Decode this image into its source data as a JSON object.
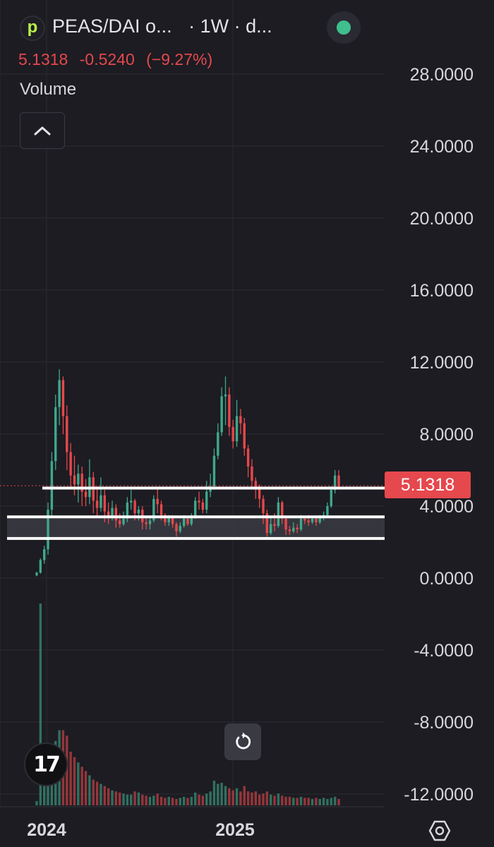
{
  "header": {
    "logo_letter": "p",
    "symbol": "PEAS/DAI o...",
    "interval": "· 1W · d...",
    "price": "5.1318",
    "change": "-0.5240",
    "change_pct": "(−9.27%)",
    "volume_label": "Volume",
    "status_color": "#3fbf8e"
  },
  "icons": {
    "collapse": "chevron-up-icon",
    "reset": "reset-icon",
    "logo": "tradingview-logo",
    "settings": "settings-icon"
  },
  "tv_logo_text": "17",
  "price_badge": "5.1318",
  "colors": {
    "up": "#3fa88b",
    "down": "#e5484d",
    "background": "#1c1c22",
    "grid": "#2a2a31"
  },
  "chart_data": {
    "type": "candlestick",
    "y_ticks": [
      "28.0000",
      "24.0000",
      "20.0000",
      "16.0000",
      "12.0000",
      "8.0000",
      "4.0000",
      "0.0000",
      "-4.0000",
      "-8.0000",
      "-12.0000"
    ],
    "y_tick_values": [
      28,
      24,
      20,
      16,
      12,
      8,
      4,
      0,
      -4,
      -8,
      -12
    ],
    "ylim": [
      -12.7,
      30
    ],
    "x_labels": [
      "2024",
      "2025"
    ],
    "last_price": 5.1318,
    "horizontal_lines": [
      5.0,
      3.4,
      2.2
    ],
    "support_zone": [
      2.2,
      3.4
    ],
    "candles": [
      [
        0.15,
        0.3,
        0.1,
        0.35
      ],
      [
        0.3,
        1.0,
        0.25,
        1.1
      ],
      [
        1.0,
        1.6,
        0.8,
        1.8
      ],
      [
        1.6,
        3.8,
        1.3,
        4.2
      ],
      [
        3.8,
        6.5,
        3.4,
        7.0
      ],
      [
        6.5,
        9.5,
        6.0,
        10.2
      ],
      [
        9.5,
        11.0,
        8.5,
        11.6
      ],
      [
        11.0,
        9.0,
        8.0,
        11.2
      ],
      [
        9.0,
        7.0,
        6.0,
        9.6
      ],
      [
        7.0,
        5.7,
        5.0,
        7.5
      ],
      [
        5.7,
        5.2,
        4.6,
        6.8
      ],
      [
        5.2,
        5.8,
        4.2,
        6.3
      ],
      [
        5.8,
        4.8,
        4.0,
        6.2
      ],
      [
        4.8,
        4.5,
        4.0,
        5.5
      ],
      [
        4.5,
        5.6,
        4.1,
        6.6
      ],
      [
        5.6,
        4.3,
        3.6,
        5.9
      ],
      [
        4.3,
        3.9,
        3.4,
        5.1
      ],
      [
        3.9,
        4.6,
        3.7,
        5.6
      ],
      [
        4.6,
        3.7,
        3.1,
        4.9
      ],
      [
        3.7,
        3.4,
        3.0,
        4.2
      ],
      [
        3.4,
        3.9,
        3.2,
        4.3
      ],
      [
        3.9,
        3.2,
        2.8,
        4.1
      ],
      [
        3.2,
        3.0,
        2.8,
        3.6
      ],
      [
        3.0,
        3.3,
        2.9,
        3.7
      ],
      [
        3.3,
        4.2,
        3.1,
        4.5
      ],
      [
        4.2,
        4.3,
        3.8,
        4.9
      ],
      [
        4.3,
        3.6,
        3.2,
        4.4
      ],
      [
        3.6,
        3.8,
        3.2,
        4.0
      ],
      [
        3.8,
        3.1,
        2.7,
        4.0
      ],
      [
        3.1,
        3.0,
        2.7,
        3.4
      ],
      [
        3.0,
        3.2,
        2.7,
        3.4
      ],
      [
        3.2,
        4.4,
        3.1,
        4.6
      ],
      [
        4.4,
        4.1,
        3.6,
        5.0
      ],
      [
        4.1,
        3.5,
        3.2,
        4.3
      ],
      [
        3.5,
        3.1,
        2.9,
        3.6
      ],
      [
        3.1,
        3.4,
        2.9,
        3.5
      ],
      [
        3.4,
        3.0,
        2.8,
        3.5
      ],
      [
        3.0,
        2.6,
        2.3,
        3.1
      ],
      [
        2.6,
        2.9,
        2.5,
        3.1
      ],
      [
        2.9,
        3.3,
        2.8,
        3.5
      ],
      [
        3.3,
        3.0,
        2.9,
        3.4
      ],
      [
        3.0,
        3.4,
        2.9,
        3.6
      ],
      [
        3.4,
        4.3,
        3.3,
        4.5
      ],
      [
        4.3,
        4.2,
        3.8,
        4.8
      ],
      [
        4.2,
        3.8,
        3.6,
        4.4
      ],
      [
        3.8,
        4.8,
        3.6,
        5.4
      ],
      [
        4.8,
        5.1,
        4.5,
        5.8
      ],
      [
        5.1,
        6.8,
        4.9,
        7.2
      ],
      [
        6.8,
        8.1,
        6.6,
        8.6
      ],
      [
        8.1,
        10.1,
        7.9,
        10.6
      ],
      [
        10.1,
        10.2,
        8.5,
        11.2
      ],
      [
        10.2,
        8.4,
        7.9,
        10.6
      ],
      [
        8.4,
        7.6,
        7.2,
        8.8
      ],
      [
        7.6,
        9.0,
        7.3,
        9.9
      ],
      [
        9.0,
        8.6,
        8.0,
        9.4
      ],
      [
        8.6,
        7.2,
        6.8,
        8.9
      ],
      [
        7.2,
        6.2,
        5.6,
        7.4
      ],
      [
        6.2,
        5.4,
        5.0,
        6.6
      ],
      [
        5.4,
        5.0,
        4.4,
        5.6
      ],
      [
        5.0,
        4.4,
        3.9,
        5.2
      ],
      [
        4.4,
        3.6,
        3.0,
        4.6
      ],
      [
        3.6,
        2.5,
        2.3,
        3.8
      ],
      [
        2.5,
        3.0,
        2.4,
        3.4
      ],
      [
        3.0,
        2.9,
        2.6,
        3.6
      ],
      [
        2.9,
        4.2,
        2.8,
        4.5
      ],
      [
        4.2,
        3.3,
        3.0,
        4.3
      ],
      [
        3.3,
        2.7,
        2.4,
        3.4
      ],
      [
        2.7,
        2.6,
        2.4,
        2.9
      ],
      [
        2.6,
        2.8,
        2.5,
        3.1
      ],
      [
        2.8,
        2.7,
        2.5,
        3.0
      ],
      [
        2.7,
        3.3,
        2.6,
        3.5
      ],
      [
        3.3,
        3.2,
        3.0,
        3.4
      ],
      [
        3.2,
        3.1,
        2.9,
        3.5
      ],
      [
        3.1,
        3.3,
        3.0,
        3.4
      ],
      [
        3.3,
        3.1,
        2.9,
        3.4
      ],
      [
        3.1,
        3.4,
        3.0,
        3.5
      ],
      [
        3.4,
        3.5,
        3.2,
        3.7
      ],
      [
        3.5,
        4.0,
        3.4,
        4.2
      ],
      [
        4.0,
        4.9,
        3.9,
        5.1
      ],
      [
        4.9,
        5.7,
        4.7,
        6.0
      ],
      [
        5.7,
        5.1,
        5.0,
        6.0
      ]
    ],
    "volumes": [
      0.4,
      19,
      3.5,
      4,
      5,
      6,
      7,
      7,
      6.5,
      5,
      4.5,
      4,
      3.6,
      3.2,
      2.8,
      2.4,
      2.2,
      2,
      1.8,
      1.6,
      1.4,
      1.3,
      1.2,
      1.1,
      1.0,
      1.0,
      1.3,
      1.2,
      1.0,
      0.9,
      0.8,
      0.9,
      1.1,
      0.8,
      0.7,
      0.8,
      0.7,
      0.6,
      0.7,
      0.8,
      0.7,
      0.8,
      1.2,
      1.0,
      0.9,
      1.1,
      1.3,
      2.3,
      2.0,
      2.1,
      1.8,
      1.6,
      1.4,
      1.6,
      1.3,
      1.8,
      1.3,
      1.2,
      1.3,
      1.0,
      1.1,
      1.3,
      1.0,
      0.9,
      1.1,
      0.9,
      0.8,
      0.8,
      0.7,
      0.7,
      0.8,
      0.7,
      0.7,
      0.6,
      0.7,
      0.6,
      0.7,
      0.6,
      0.7,
      0.8,
      0.6
    ]
  }
}
